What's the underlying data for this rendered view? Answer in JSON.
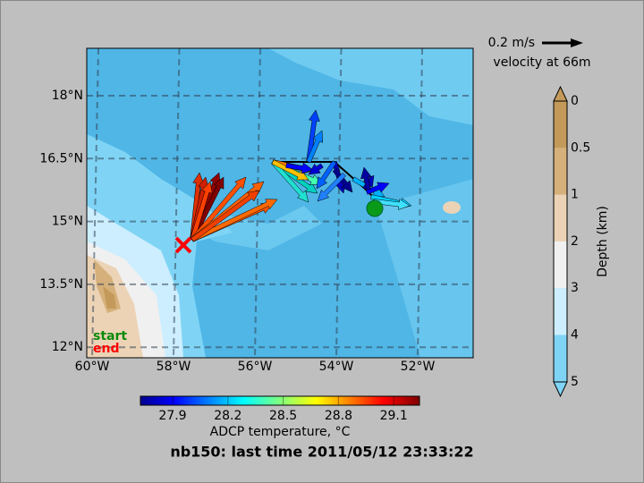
{
  "map": {
    "title": "nb150: last time 2011/05/12 23:33:22",
    "scale_arrow": {
      "label": "0.2 m/s",
      "caption": "velocity at 66m"
    },
    "lat_ticks": [
      "18°N",
      "16.5°N",
      "15°N",
      "13.5°N",
      "12°N"
    ],
    "lon_ticks": [
      "60°W",
      "58°W",
      "56°W",
      "54°W",
      "52°W"
    ],
    "legend": {
      "start": "start",
      "end": "end"
    },
    "temperature_colorbar": {
      "label": "ADCP temperature, °C",
      "ticks": [
        27.9,
        28.2,
        28.5,
        28.8,
        29.1
      ]
    },
    "depth_colorbar": {
      "label": "Depth (km)",
      "ticks": [
        0,
        0.5,
        1,
        2,
        3,
        4,
        5
      ]
    }
  }
}
